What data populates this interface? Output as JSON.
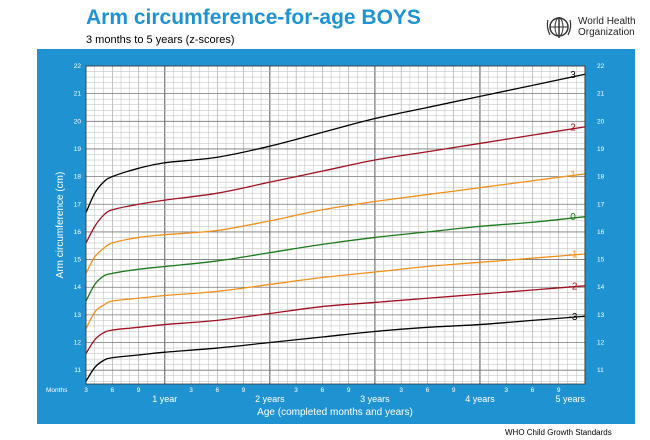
{
  "header": {
    "title": "Arm circumference-for-age  BOYS",
    "subtitle": "3 months to 5 years (z-scores)",
    "organization": "World Health Organization"
  },
  "footer": {
    "text": "WHO Child Growth Standards"
  },
  "colors": {
    "panel": "#1f93d2",
    "grid": "#ffffff",
    "title": "#1f93d2",
    "sd3": "#000000",
    "sd2": "#a01020",
    "sd1": "#f0901a",
    "median": "#1a7a1a"
  },
  "chart_data": {
    "type": "line",
    "xlabel": "Age (completed months and years)",
    "ylabel": "Arm circumference (cm)",
    "x_prefix": "Months",
    "xlim": [
      3,
      60
    ],
    "ylim": [
      10.5,
      22
    ],
    "yticks": [
      11,
      12,
      13,
      14,
      15,
      16,
      17,
      18,
      19,
      20,
      21,
      22
    ],
    "x_month_ticks": [
      {
        "x": 3,
        "label": "3"
      },
      {
        "x": 6,
        "label": "6"
      },
      {
        "x": 9,
        "label": "9"
      },
      {
        "x": 15,
        "label": "3"
      },
      {
        "x": 18,
        "label": "6"
      },
      {
        "x": 21,
        "label": "9"
      },
      {
        "x": 27,
        "label": "3"
      },
      {
        "x": 30,
        "label": "6"
      },
      {
        "x": 33,
        "label": "9"
      },
      {
        "x": 39,
        "label": "3"
      },
      {
        "x": 42,
        "label": "6"
      },
      {
        "x": 45,
        "label": "9"
      },
      {
        "x": 51,
        "label": "3"
      },
      {
        "x": 54,
        "label": "6"
      },
      {
        "x": 57,
        "label": "9"
      }
    ],
    "x_year_ticks": [
      {
        "x": 12,
        "label": "1 year"
      },
      {
        "x": 24,
        "label": "2 years"
      },
      {
        "x": 36,
        "label": "3 years"
      },
      {
        "x": 48,
        "label": "4 years"
      },
      {
        "x": 60,
        "label": "5 years"
      }
    ],
    "grid": true,
    "x": [
      3,
      4,
      5,
      6,
      9,
      12,
      18,
      24,
      30,
      36,
      42,
      48,
      54,
      60
    ],
    "series": [
      {
        "name": "3",
        "color": "#000000",
        "values": [
          16.7,
          17.4,
          17.8,
          18.0,
          18.3,
          18.5,
          18.7,
          19.1,
          19.6,
          20.1,
          20.5,
          20.9,
          21.3,
          21.7
        ]
      },
      {
        "name": "2",
        "color": "#a01020",
        "values": [
          15.6,
          16.2,
          16.6,
          16.8,
          17.0,
          17.15,
          17.4,
          17.8,
          18.2,
          18.6,
          18.9,
          19.2,
          19.5,
          19.8
        ]
      },
      {
        "name": "1",
        "color": "#f0901a",
        "values": [
          14.5,
          15.1,
          15.4,
          15.6,
          15.8,
          15.9,
          16.05,
          16.4,
          16.8,
          17.1,
          17.35,
          17.6,
          17.85,
          18.1
        ]
      },
      {
        "name": "0",
        "color": "#1a7a1a",
        "values": [
          13.5,
          14.1,
          14.4,
          14.5,
          14.65,
          14.75,
          14.95,
          15.25,
          15.55,
          15.8,
          16.0,
          16.2,
          16.35,
          16.55
        ]
      },
      {
        "name": "-1",
        "color": "#f0901a",
        "values": [
          12.5,
          13.1,
          13.35,
          13.5,
          13.6,
          13.7,
          13.85,
          14.1,
          14.35,
          14.55,
          14.75,
          14.9,
          15.05,
          15.2
        ]
      },
      {
        "name": "-2",
        "color": "#a01020",
        "values": [
          11.6,
          12.1,
          12.35,
          12.45,
          12.55,
          12.65,
          12.8,
          13.05,
          13.3,
          13.45,
          13.6,
          13.75,
          13.9,
          14.05
        ]
      },
      {
        "name": "-3",
        "color": "#000000",
        "values": [
          10.6,
          11.1,
          11.35,
          11.45,
          11.55,
          11.65,
          11.8,
          12.0,
          12.2,
          12.4,
          12.55,
          12.65,
          12.8,
          12.95
        ]
      }
    ]
  }
}
